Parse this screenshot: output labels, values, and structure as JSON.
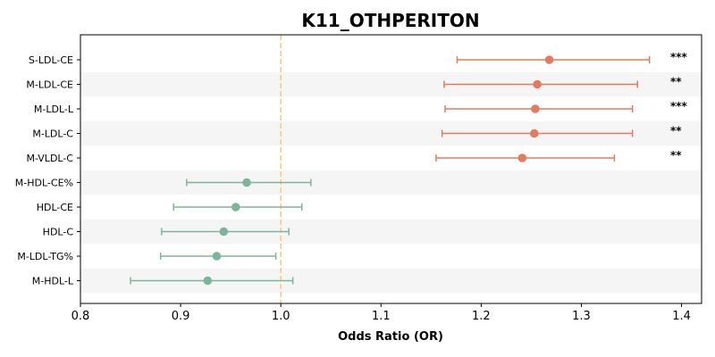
{
  "chart_data": {
    "type": "forest",
    "title": "K11_OTHPERITON",
    "xlabel": "Odds Ratio (OR)",
    "ylabel": "",
    "xlim": [
      0.8,
      1.42
    ],
    "xticks": [
      "0.8",
      "0.9",
      "1.0",
      "1.1",
      "1.2",
      "1.3",
      "1.4"
    ],
    "reference_line": 1.0,
    "reference_color": "#f5c77e",
    "row_band_color": "#f5f5f5",
    "colors": {
      "positive": "#e07b5f",
      "negative": "#7db59a"
    },
    "rows": [
      {
        "label": "S-LDL-CE",
        "or": 1.268,
        "lower": 1.176,
        "upper": 1.368,
        "sig": "***",
        "group": "positive"
      },
      {
        "label": "M-LDL-CE",
        "or": 1.256,
        "lower": 1.163,
        "upper": 1.356,
        "sig": "**",
        "group": "positive"
      },
      {
        "label": "M-LDL-L",
        "or": 1.254,
        "lower": 1.164,
        "upper": 1.351,
        "sig": "***",
        "group": "positive"
      },
      {
        "label": "M-LDL-C",
        "or": 1.253,
        "lower": 1.161,
        "upper": 1.351,
        "sig": "**",
        "group": "positive"
      },
      {
        "label": "M-VLDL-C",
        "or": 1.241,
        "lower": 1.155,
        "upper": 1.333,
        "sig": "**",
        "group": "positive"
      },
      {
        "label": "M-HDL-CE%",
        "or": 0.966,
        "lower": 0.906,
        "upper": 1.03,
        "sig": "",
        "group": "negative"
      },
      {
        "label": "HDL-CE",
        "or": 0.955,
        "lower": 0.893,
        "upper": 1.021,
        "sig": "",
        "group": "negative"
      },
      {
        "label": "HDL-C",
        "or": 0.943,
        "lower": 0.881,
        "upper": 1.008,
        "sig": "",
        "group": "negative"
      },
      {
        "label": "M-LDL-TG%",
        "or": 0.936,
        "lower": 0.88,
        "upper": 0.995,
        "sig": "",
        "group": "negative"
      },
      {
        "label": "M-HDL-L",
        "or": 0.927,
        "lower": 0.85,
        "upper": 1.012,
        "sig": "",
        "group": "negative"
      }
    ]
  }
}
